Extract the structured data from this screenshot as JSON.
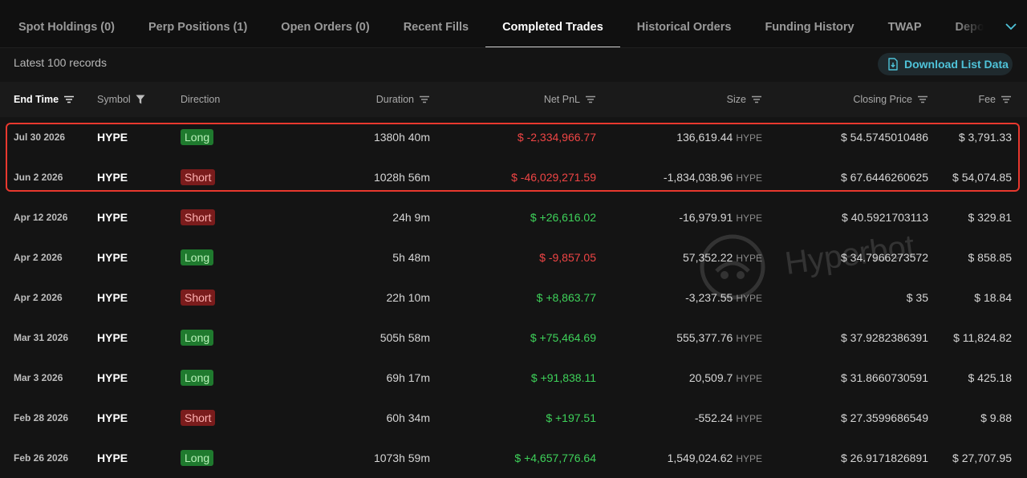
{
  "tabs": [
    {
      "label": "Spot Holdings (0)",
      "active": false
    },
    {
      "label": "Perp Positions (1)",
      "active": false
    },
    {
      "label": "Open Orders (0)",
      "active": false
    },
    {
      "label": "Recent Fills",
      "active": false
    },
    {
      "label": "Completed Trades",
      "active": true
    },
    {
      "label": "Historical Orders",
      "active": false
    },
    {
      "label": "Funding History",
      "active": false
    },
    {
      "label": "TWAP",
      "active": false
    },
    {
      "label": "Deposits & Withdrav",
      "active": false
    }
  ],
  "toolbar": {
    "records_label": "Latest 100 records",
    "download_label": "Download List Data"
  },
  "columns": {
    "end_time": "End Time",
    "symbol": "Symbol",
    "direction": "Direction",
    "duration": "Duration",
    "net_pnl": "Net PnL",
    "size": "Size",
    "closing_price": "Closing Price",
    "fee": "Fee"
  },
  "rows": [
    {
      "end_time": "Jul 30 2026",
      "symbol": "HYPE",
      "direction": "Long",
      "duration": "1380h 40m",
      "pnl": "$ -2,334,966.77",
      "pnl_sign": "neg",
      "size": "136,619.44",
      "size_unit": "HYPE",
      "closing_price": "$ 54.5745010486",
      "fee": "$ 3,791.33"
    },
    {
      "end_time": "Jun 2 2026",
      "symbol": "HYPE",
      "direction": "Short",
      "duration": "1028h 56m",
      "pnl": "$ -46,029,271.59",
      "pnl_sign": "neg",
      "size": "-1,834,038.96",
      "size_unit": "HYPE",
      "closing_price": "$ 67.6446260625",
      "fee": "$ 54,074.85"
    },
    {
      "end_time": "Apr 12 2026",
      "symbol": "HYPE",
      "direction": "Short",
      "duration": "24h 9m",
      "pnl": "$ +26,616.02",
      "pnl_sign": "pos",
      "size": "-16,979.91",
      "size_unit": "HYPE",
      "closing_price": "$ 40.5921703113",
      "fee": "$ 329.81"
    },
    {
      "end_time": "Apr 2 2026",
      "symbol": "HYPE",
      "direction": "Long",
      "duration": "5h 48m",
      "pnl": "$ -9,857.05",
      "pnl_sign": "neg",
      "size": "57,352.22",
      "size_unit": "HYPE",
      "closing_price": "$ 34.7966273572",
      "fee": "$ 858.85"
    },
    {
      "end_time": "Apr 2 2026",
      "symbol": "HYPE",
      "direction": "Short",
      "duration": "22h 10m",
      "pnl": "$ +8,863.77",
      "pnl_sign": "pos",
      "size": "-3,237.55",
      "size_unit": "HYPE",
      "closing_price": "$ 35",
      "fee": "$ 18.84"
    },
    {
      "end_time": "Mar 31 2026",
      "symbol": "HYPE",
      "direction": "Long",
      "duration": "505h 58m",
      "pnl": "$ +75,464.69",
      "pnl_sign": "pos",
      "size": "555,377.76",
      "size_unit": "HYPE",
      "closing_price": "$ 37.9282386391",
      "fee": "$ 11,824.82"
    },
    {
      "end_time": "Mar 3 2026",
      "symbol": "HYPE",
      "direction": "Long",
      "duration": "69h 17m",
      "pnl": "$ +91,838.11",
      "pnl_sign": "pos",
      "size": "20,509.7",
      "size_unit": "HYPE",
      "closing_price": "$ 31.8660730591",
      "fee": "$ 425.18"
    },
    {
      "end_time": "Feb 28 2026",
      "symbol": "HYPE",
      "direction": "Short",
      "duration": "60h 34m",
      "pnl": "$ +197.51",
      "pnl_sign": "pos",
      "size": "-552.24",
      "size_unit": "HYPE",
      "closing_price": "$ 27.3599686549",
      "fee": "$ 9.88"
    },
    {
      "end_time": "Feb 26 2026",
      "symbol": "HYPE",
      "direction": "Long",
      "duration": "1073h 59m",
      "pnl": "$ +4,657,776.64",
      "pnl_sign": "pos",
      "size": "1,549,024.62",
      "size_unit": "HYPE",
      "closing_price": "$ 26.9171826891",
      "fee": "$ 27,707.95"
    }
  ],
  "watermark": {
    "text": "Hyperbot"
  },
  "colors": {
    "positive": "#3ed25a",
    "negative": "#f04545",
    "accent": "#4fc3d9",
    "highlight_border": "#e8382e"
  }
}
